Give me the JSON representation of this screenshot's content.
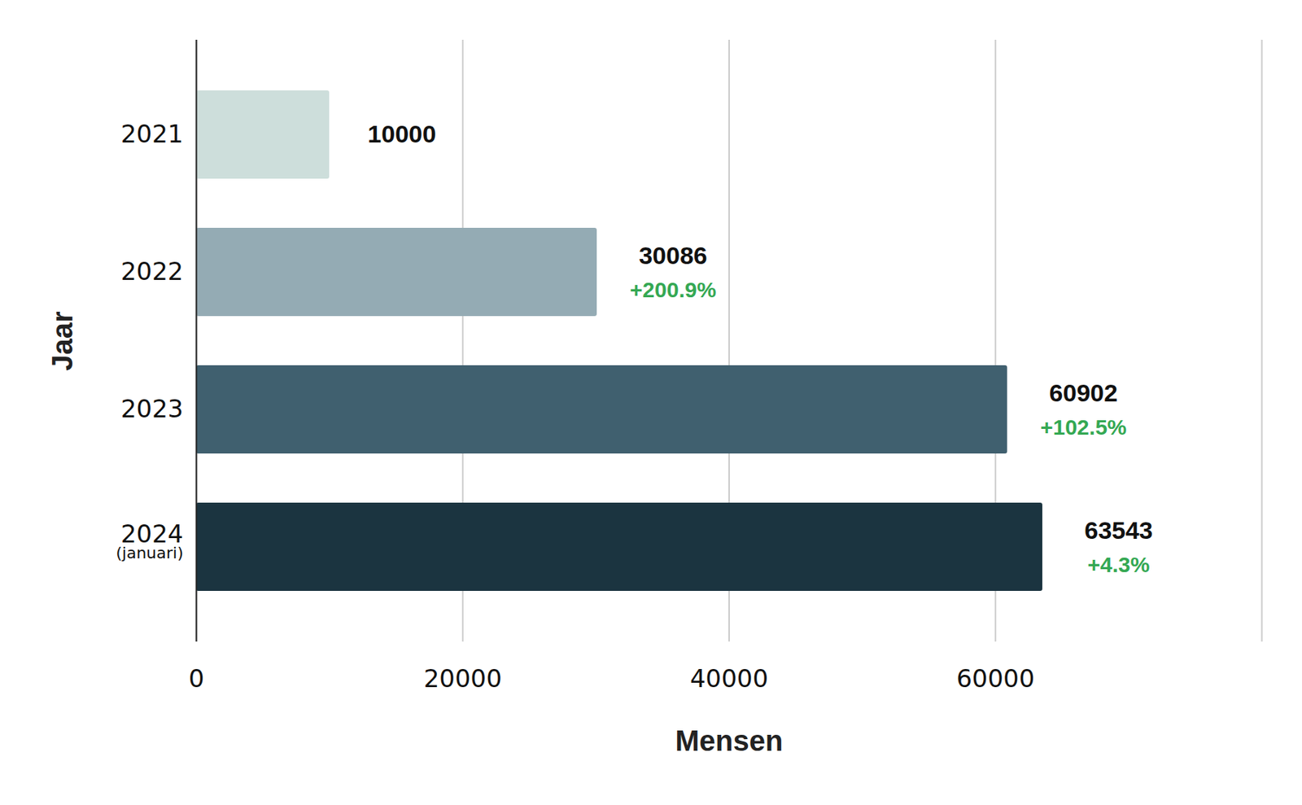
{
  "chart_data": {
    "type": "bar",
    "orientation": "horizontal",
    "x_label": "Mensen",
    "y_label": "Jaar",
    "categories": [
      "2021",
      "2022",
      "2023",
      "2024\n(januari)"
    ],
    "values": [
      10000,
      30086,
      60902,
      63543
    ],
    "change_labels": [
      null,
      "+200.9%",
      "+102.5%",
      "+4.3%"
    ],
    "colors": [
      "#cddedb",
      "#94abb4",
      "#40606f",
      "#1b3440"
    ],
    "xlim": [
      0,
      80000
    ],
    "xticks": [
      0,
      20000,
      40000,
      60000
    ],
    "grid": true,
    "data_labels": true
  }
}
